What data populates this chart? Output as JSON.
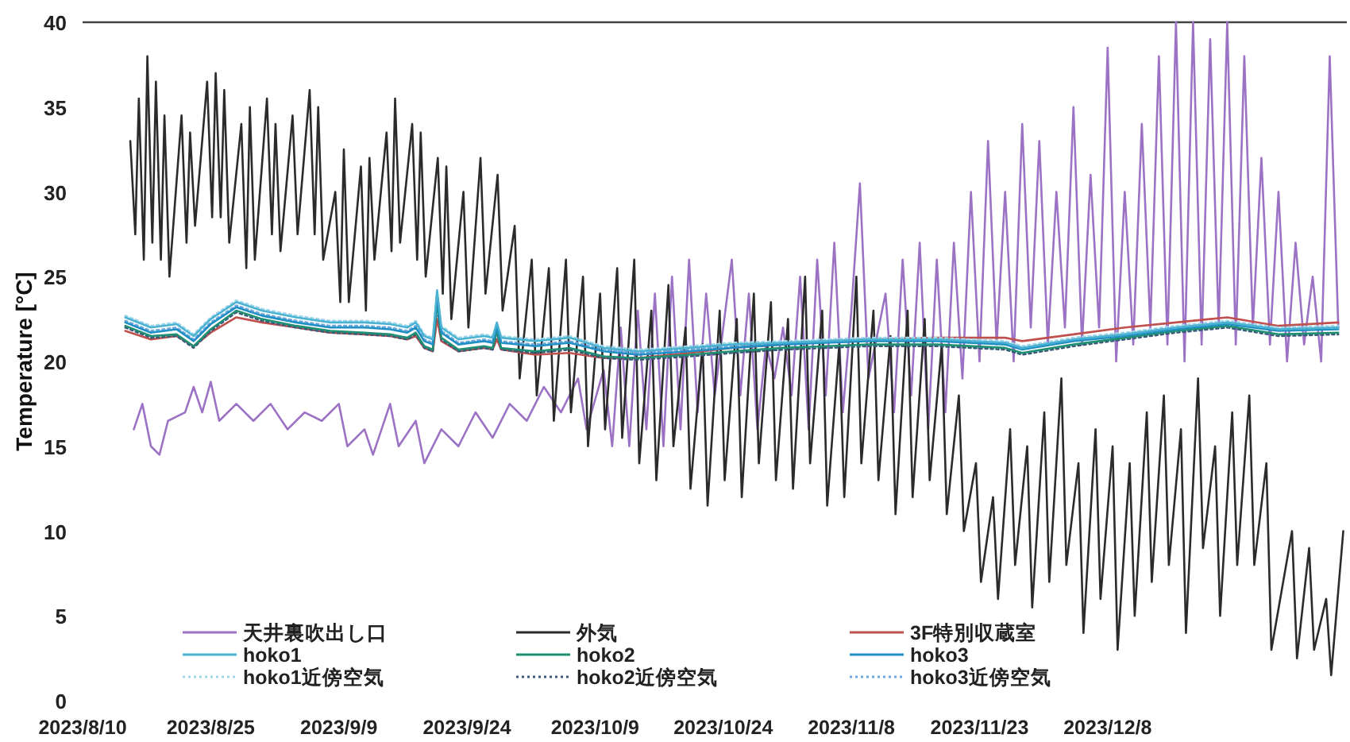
{
  "chart_data": {
    "type": "line",
    "ylabel": "Temperature [°C]",
    "ylim": [
      0,
      40
    ],
    "yticks": [
      0,
      5,
      10,
      15,
      20,
      25,
      30,
      35,
      40
    ],
    "xlim": [
      "2023-08-10",
      "2024-01-05"
    ],
    "xticks": [
      {
        "value": "2023-08-10",
        "label": "2023/8/10"
      },
      {
        "value": "2023-08-25",
        "label": "2023/8/25"
      },
      {
        "value": "2023-09-09",
        "label": "2023/9/9"
      },
      {
        "value": "2023-09-24",
        "label": "2023/9/24"
      },
      {
        "value": "2023-10-09",
        "label": "2023/10/9"
      },
      {
        "value": "2023-10-24",
        "label": "2023/10/24"
      },
      {
        "value": "2023-11-08",
        "label": "2023/11/8"
      },
      {
        "value": "2023-11-23",
        "label": "2023/11/23"
      },
      {
        "value": "2023-12-08",
        "label": "2023/12/8"
      }
    ],
    "legend": "bottom left",
    "x": [
      "2023-08-15",
      "2023-08-18",
      "2023-08-21",
      "2023-08-23",
      "2023-08-25",
      "2023-08-28",
      "2023-08-31",
      "2023-09-04",
      "2023-09-08",
      "2023-09-12",
      "2023-09-15",
      "2023-09-17",
      "2023-09-18",
      "2023-09-19",
      "2023-09-20",
      "2023-09-20T12:00",
      "2023-09-21",
      "2023-09-23",
      "2023-09-26",
      "2023-09-27",
      "2023-09-27T12:00",
      "2023-09-28",
      "2023-10-02",
      "2023-10-06",
      "2023-10-10",
      "2023-10-14",
      "2023-10-20",
      "2023-10-25",
      "2023-10-31",
      "2023-11-05",
      "2023-11-10",
      "2023-11-18",
      "2023-11-26",
      "2023-11-28",
      "2023-12-04",
      "2023-12-10",
      "2023-12-16",
      "2023-12-22",
      "2023-12-28",
      "2024-01-04"
    ],
    "series": [
      {
        "name": "天井裏吹出し口",
        "color": "#9b72c4",
        "x": [
          "2023-08-16",
          "2023-08-17",
          "2023-08-18",
          "2023-08-19",
          "2023-08-20",
          "2023-08-22",
          "2023-08-23",
          "2023-08-24",
          "2023-08-25",
          "2023-08-26",
          "2023-08-28",
          "2023-08-30",
          "2023-09-01",
          "2023-09-03",
          "2023-09-05",
          "2023-09-07",
          "2023-09-09",
          "2023-09-10",
          "2023-09-12",
          "2023-09-13",
          "2023-09-15",
          "2023-09-16",
          "2023-09-18",
          "2023-09-19",
          "2023-09-21",
          "2023-09-23",
          "2023-09-25",
          "2023-09-27",
          "2023-09-29",
          "2023-10-01",
          "2023-10-03",
          "2023-10-05",
          "2023-10-07",
          "2023-10-08",
          "2023-10-10",
          "2023-10-11",
          "2023-10-12",
          "2023-10-13",
          "2023-10-14",
          "2023-10-15",
          "2023-10-16",
          "2023-10-17",
          "2023-10-18",
          "2023-10-19",
          "2023-10-20",
          "2023-10-21",
          "2023-10-22",
          "2023-10-23",
          "2023-10-25",
          "2023-10-26",
          "2023-10-27",
          "2023-10-28",
          "2023-10-29",
          "2023-10-30",
          "2023-10-31",
          "2023-11-01",
          "2023-11-02",
          "2023-11-03",
          "2023-11-04",
          "2023-11-05",
          "2023-11-06",
          "2023-11-07",
          "2023-11-08",
          "2023-11-09",
          "2023-11-10",
          "2023-11-12",
          "2023-11-13",
          "2023-11-14",
          "2023-11-15",
          "2023-11-16",
          "2023-11-17",
          "2023-11-18",
          "2023-11-19",
          "2023-11-20",
          "2023-11-21",
          "2023-11-22",
          "2023-11-23",
          "2023-11-24",
          "2023-11-25",
          "2023-11-26",
          "2023-11-27",
          "2023-11-28",
          "2023-11-29",
          "2023-11-30",
          "2023-12-01",
          "2023-12-02",
          "2023-12-03",
          "2023-12-04",
          "2023-12-05",
          "2023-12-06",
          "2023-12-07",
          "2023-12-08",
          "2023-12-09",
          "2023-12-10",
          "2023-12-11",
          "2023-12-12",
          "2023-12-13",
          "2023-12-14",
          "2023-12-15",
          "2023-12-16",
          "2023-12-17",
          "2023-12-18",
          "2023-12-19",
          "2023-12-20",
          "2023-12-21",
          "2023-12-22",
          "2023-12-23",
          "2023-12-24",
          "2023-12-25",
          "2023-12-26",
          "2023-12-27",
          "2023-12-28",
          "2023-12-29",
          "2023-12-30",
          "2023-12-31",
          "2024-01-01",
          "2024-01-02",
          "2024-01-03",
          "2024-01-04"
        ],
        "values": [
          16,
          17.5,
          15,
          14.5,
          16.5,
          17,
          18.5,
          17,
          18.8,
          16.5,
          17.5,
          16.5,
          17.5,
          16,
          17,
          16.5,
          17.5,
          15,
          16,
          14.5,
          17.5,
          15,
          16.5,
          14,
          16,
          15,
          17,
          15.5,
          17.5,
          16.5,
          18.5,
          17,
          19,
          16,
          19.5,
          15,
          22,
          15,
          23,
          16,
          24,
          15,
          25,
          16,
          26,
          17,
          24,
          18,
          26,
          18,
          24,
          16,
          21,
          19,
          22,
          18,
          25,
          16,
          26,
          18,
          27,
          17,
          23,
          30.5,
          19,
          24,
          17,
          26,
          18,
          27,
          16,
          26,
          17,
          27,
          19,
          30,
          20,
          33,
          21,
          30,
          20,
          34,
          22,
          33,
          21,
          30,
          22,
          35,
          21,
          31,
          22,
          38.5,
          20,
          30,
          21,
          34,
          22,
          38,
          21,
          40,
          20,
          40,
          21,
          39,
          22,
          40,
          21,
          38,
          22,
          32,
          21,
          30,
          20,
          27,
          21,
          25,
          20,
          38,
          22
        ]
      },
      {
        "name": "外気",
        "color": "#2b2b2b",
        "x": [
          "2023-08-15T14:00",
          "2023-08-16T04:00",
          "2023-08-16T14:00",
          "2023-08-17T04:00",
          "2023-08-17T14:00",
          "2023-08-18T04:00",
          "2023-08-18T14:00",
          "2023-08-19T04:00",
          "2023-08-19T14:00",
          "2023-08-20T04:00",
          "2023-08-21T14:00",
          "2023-08-22T04:00",
          "2023-08-22T14:00",
          "2023-08-23T04:00",
          "2023-08-24T14:00",
          "2023-08-25T04:00",
          "2023-08-25T14:00",
          "2023-08-26T04:00",
          "2023-08-26T14:00",
          "2023-08-27T04:00",
          "2023-08-28T14:00",
          "2023-08-29T04:00",
          "2023-08-29T14:00",
          "2023-08-30T04:00",
          "2023-08-31T14:00",
          "2023-09-01T04:00",
          "2023-09-01T14:00",
          "2023-09-02T04:00",
          "2023-09-03T14:00",
          "2023-09-04T04:00",
          "2023-09-05T14:00",
          "2023-09-06T04:00",
          "2023-09-06T14:00",
          "2023-09-07T04:00",
          "2023-09-08T14:00",
          "2023-09-09T04:00",
          "2023-09-09T14:00",
          "2023-09-10T04:00",
          "2023-09-11T14:00",
          "2023-09-12T04:00",
          "2023-09-12T14:00",
          "2023-09-13T04:00",
          "2023-09-14T14:00",
          "2023-09-15T04:00",
          "2023-09-15T14:00",
          "2023-09-16T04:00",
          "2023-09-17T14:00",
          "2023-09-18T04:00",
          "2023-09-18T14:00",
          "2023-09-19T04:00",
          "2023-09-20T14:00",
          "2023-09-21T04:00",
          "2023-09-21T14:00",
          "2023-09-22T04:00",
          "2023-09-23T14:00",
          "2023-09-24T04:00",
          "2023-09-25T14:00",
          "2023-09-26T04:00",
          "2023-09-27T14:00",
          "2023-09-28T04:00",
          "2023-09-29T14:00",
          "2023-09-30T04:00",
          "2023-10-01T14:00",
          "2023-10-02T04:00",
          "2023-10-03T14:00",
          "2023-10-04T04:00",
          "2023-10-05T14:00",
          "2023-10-06T04:00",
          "2023-10-07T14:00",
          "2023-10-08T04:00",
          "2023-10-09T14:00",
          "2023-10-10T04:00",
          "2023-10-11T14:00",
          "2023-10-12T04:00",
          "2023-10-13T14:00",
          "2023-10-14T04:00",
          "2023-10-15T14:00",
          "2023-10-16T04:00",
          "2023-10-17T14:00",
          "2023-10-18T04:00",
          "2023-10-19T14:00",
          "2023-10-20T04:00",
          "2023-10-21T14:00",
          "2023-10-22T04:00",
          "2023-10-23T14:00",
          "2023-10-24T04:00",
          "2023-10-25T14:00",
          "2023-10-26T04:00",
          "2023-10-27T14:00",
          "2023-10-28T04:00",
          "2023-10-29T14:00",
          "2023-10-30T04:00",
          "2023-10-31T14:00",
          "2023-11-01T04:00",
          "2023-11-02T14:00",
          "2023-11-03T04:00",
          "2023-11-04T14:00",
          "2023-11-05T04:00",
          "2023-11-06T14:00",
          "2023-11-07T04:00",
          "2023-11-08T14:00",
          "2023-11-09T04:00",
          "2023-11-10T14:00",
          "2023-11-11T04:00",
          "2023-11-12T14:00",
          "2023-11-13T04:00",
          "2023-11-14T14:00",
          "2023-11-15T04:00",
          "2023-11-16T14:00",
          "2023-11-17T04:00",
          "2023-11-18T14:00",
          "2023-11-19T04:00",
          "2023-11-20T14:00",
          "2023-11-21T04:00",
          "2023-11-22T14:00",
          "2023-11-23T04:00",
          "2023-11-24T14:00",
          "2023-11-25T04:00",
          "2023-11-26T14:00",
          "2023-11-27T04:00",
          "2023-11-28T14:00",
          "2023-11-29T04:00",
          "2023-11-30T14:00",
          "2023-12-01T04:00",
          "2023-12-02T14:00",
          "2023-12-03T04:00",
          "2023-12-04T14:00",
          "2023-12-05T04:00",
          "2023-12-06T14:00",
          "2023-12-07T04:00",
          "2023-12-08T14:00",
          "2023-12-09T04:00",
          "2023-12-10T14:00",
          "2023-12-11T04:00",
          "2023-12-12T14:00",
          "2023-12-13T04:00",
          "2023-12-14T14:00",
          "2023-12-15T04:00",
          "2023-12-16T14:00",
          "2023-12-17T04:00",
          "2023-12-18T14:00",
          "2023-12-19T04:00",
          "2023-12-20T14:00",
          "2023-12-21T04:00",
          "2023-12-22T14:00",
          "2023-12-23T04:00",
          "2023-12-24T14:00",
          "2023-12-25T04:00",
          "2023-12-26T14:00",
          "2023-12-27T04:00",
          "2023-12-29T14:00",
          "2023-12-30T04:00",
          "2023-12-31T14:00",
          "2024-01-01T04:00",
          "2024-01-02T14:00",
          "2024-01-03T04:00",
          "2024-01-04T14:00"
        ],
        "values": [
          33,
          27.5,
          35.5,
          26,
          38,
          27,
          36.5,
          26,
          34.5,
          25,
          34.5,
          27,
          33.5,
          28,
          36.5,
          28.5,
          37,
          28.5,
          36,
          27,
          34,
          25.5,
          35,
          26,
          35.5,
          27.5,
          34,
          26.5,
          34.5,
          27.5,
          36,
          27.5,
          35,
          26,
          30,
          23.5,
          32.5,
          23.5,
          31.5,
          23,
          32,
          26,
          33.5,
          26.5,
          35.5,
          27,
          34,
          26,
          33.5,
          25,
          32,
          24,
          31.5,
          22.5,
          30,
          22,
          32,
          24,
          31,
          23,
          28,
          19,
          26,
          18,
          25.5,
          16.5,
          26,
          17,
          25,
          15,
          24,
          16,
          25.5,
          15.5,
          26,
          14,
          23,
          13,
          24.5,
          15,
          22,
          12.5,
          21,
          11.5,
          23,
          13,
          22.5,
          12,
          24,
          14,
          23.5,
          13,
          22.5,
          12.5,
          25,
          14,
          23,
          11.5,
          21,
          12,
          25,
          14,
          23,
          13,
          21.5,
          11,
          23,
          12,
          22.5,
          13,
          21,
          11,
          18,
          10,
          14,
          7,
          12,
          6,
          16,
          8,
          15,
          5.5,
          17,
          7,
          19,
          8,
          14,
          4,
          16,
          6,
          15,
          3,
          14,
          5,
          17,
          7,
          18,
          8,
          16,
          4,
          19,
          9,
          15,
          5,
          17,
          8,
          18,
          8,
          14,
          3,
          10,
          2.5,
          9,
          3,
          6,
          1.5,
          10
        ]
      },
      {
        "name": "3F特別収蔵室",
        "color": "#c0504d",
        "values": [
          21.8,
          21.3,
          21.5,
          20.9,
          21.7,
          22.6,
          22.3,
          22,
          21.7,
          21.6,
          21.5,
          21.3,
          21.5,
          20.8,
          20.6,
          22.5,
          21.2,
          20.6,
          20.8,
          20.7,
          21.3,
          20.7,
          20.4,
          20.5,
          20.2,
          20.2,
          20.5,
          20.8,
          21,
          21.2,
          21.3,
          21.4,
          21.4,
          21.2,
          21.6,
          22,
          22.3,
          22.6,
          22.1,
          22.3
        ]
      },
      {
        "name": "hoko1",
        "color": "#4bb3d1",
        "values": [
          22.6,
          22,
          22.2,
          21.5,
          22.5,
          23.5,
          23,
          22.6,
          22.3,
          22.3,
          22.2,
          22,
          22.3,
          21.5,
          21.3,
          24.2,
          22,
          21.3,
          21.5,
          21.4,
          22.3,
          21.4,
          21.2,
          21.4,
          20.8,
          20.6,
          20.8,
          21,
          21.1,
          21.2,
          21.3,
          21.3,
          21.1,
          20.8,
          21.3,
          21.6,
          22,
          22.3,
          21.9,
          22
        ]
      },
      {
        "name": "hoko2",
        "color": "#1e8f72",
        "values": [
          22.1,
          21.5,
          21.6,
          20.9,
          21.9,
          23,
          22.5,
          22.1,
          21.8,
          21.7,
          21.6,
          21.4,
          21.7,
          20.9,
          20.7,
          23.5,
          21.4,
          20.7,
          20.9,
          20.8,
          21.8,
          20.8,
          20.6,
          20.8,
          20.3,
          20.2,
          20.4,
          20.6,
          20.8,
          20.9,
          21,
          21,
          20.8,
          20.5,
          21,
          21.4,
          21.8,
          22.1,
          21.6,
          21.7
        ]
      },
      {
        "name": "hoko3",
        "color": "#1f8fc4",
        "values": [
          22.3,
          21.7,
          21.9,
          21.2,
          22.2,
          23.2,
          22.7,
          22.3,
          22,
          22,
          21.9,
          21.7,
          22,
          21.2,
          21,
          23.8,
          21.7,
          21,
          21.2,
          21.1,
          22,
          21.1,
          20.9,
          21.1,
          20.6,
          20.4,
          20.6,
          20.8,
          21,
          21.1,
          21.2,
          21.2,
          21,
          20.7,
          21.2,
          21.5,
          21.9,
          22.2,
          21.8,
          21.9
        ]
      },
      {
        "name": "hoko1近傍空気",
        "color": "#9fd6ea",
        "line_style": "dotted",
        "values": [
          22.7,
          22.1,
          22.3,
          21.6,
          22.6,
          23.6,
          23.1,
          22.7,
          22.4,
          22.4,
          22.3,
          22.1,
          22.4,
          21.6,
          21.4,
          24.1,
          22.1,
          21.4,
          21.6,
          21.5,
          22.2,
          21.5,
          21.3,
          21.5,
          20.9,
          20.7,
          20.9,
          21.1,
          21.2,
          21.3,
          21.4,
          21.4,
          21.2,
          20.9,
          21.4,
          21.7,
          22.1,
          22.4,
          22,
          22.1
        ]
      },
      {
        "name": "hoko2近傍空気",
        "color": "#3a5a78",
        "line_style": "dotted",
        "values": [
          22,
          21.4,
          21.5,
          20.8,
          21.8,
          22.9,
          22.4,
          22,
          21.7,
          21.6,
          21.5,
          21.3,
          21.6,
          20.8,
          20.6,
          23.3,
          21.3,
          20.6,
          20.8,
          20.7,
          21.7,
          20.7,
          20.5,
          20.7,
          20.2,
          20.1,
          20.3,
          20.5,
          20.7,
          20.8,
          20.9,
          20.9,
          20.7,
          20.4,
          20.9,
          21.3,
          21.7,
          22,
          21.5,
          21.6
        ]
      },
      {
        "name": "hoko3近傍空気",
        "color": "#6fa8dc",
        "line_style": "dotted",
        "values": [
          22.4,
          21.8,
          22,
          21.3,
          22.3,
          23.3,
          22.8,
          22.4,
          22.1,
          22.1,
          22,
          21.8,
          22.1,
          21.3,
          21.1,
          23.9,
          21.8,
          21.1,
          21.3,
          21.2,
          22.1,
          21.2,
          21,
          21.2,
          20.7,
          20.5,
          20.7,
          20.9,
          21.1,
          21.2,
          21.3,
          21.3,
          21.1,
          20.8,
          21.3,
          21.6,
          22,
          22.3,
          21.9,
          22
        ]
      }
    ]
  }
}
